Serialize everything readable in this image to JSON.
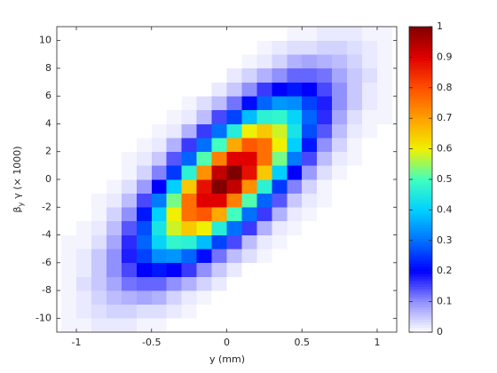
{
  "chart_data": {
    "type": "heatmap",
    "xlabel": "y (mm)",
    "ylabel": {
      "symbol": "β",
      "subscript": "y",
      "rest": "γ (× 1000)"
    },
    "xlim": [
      -1.13,
      1.13
    ],
    "ylim": [
      -11,
      11
    ],
    "xticks": [
      -1,
      -0.5,
      0,
      0.5,
      1
    ],
    "yticks": [
      -10,
      -8,
      -6,
      -4,
      -2,
      0,
      2,
      4,
      6,
      8,
      10
    ],
    "clim": [
      0,
      1
    ],
    "cticks": [
      0,
      0.1,
      0.2,
      0.3,
      0.4,
      0.5,
      0.6,
      0.7,
      0.8,
      0.9,
      1
    ],
    "colormap": [
      "#ffffff",
      "#9090ff",
      "#0000ff",
      "#0070ff",
      "#00d0ff",
      "#40ffc0",
      "#f0f000",
      "#ffa000",
      "#ff5000",
      "#e00000",
      "#800000"
    ],
    "xbins": [
      -1.1,
      -1.0,
      -0.9,
      -0.8,
      -0.7,
      -0.6,
      -0.5,
      -0.4,
      -0.3,
      -0.2,
      -0.1,
      0,
      0.1,
      0.2,
      0.3,
      0.4,
      0.5,
      0.6,
      0.7,
      0.8,
      0.9,
      1.0,
      1.1
    ],
    "ybins": [
      -11,
      -10,
      -9,
      -8,
      -7,
      -6,
      -5,
      -4,
      -3,
      -2,
      -1,
      0,
      1,
      2,
      3,
      4,
      5,
      6,
      7,
      8,
      9,
      10,
      11
    ],
    "z": [
      [
        0.01,
        0.01,
        0.02,
        0.02,
        0.02,
        0.01,
        0.01,
        0,
        0,
        0,
        0,
        0,
        0,
        0,
        0,
        0,
        0,
        0,
        0,
        0,
        0,
        0
      ],
      [
        0.01,
        0.02,
        0.03,
        0.04,
        0.04,
        0.03,
        0.03,
        0.02,
        0.01,
        0,
        0,
        0,
        0,
        0,
        0,
        0,
        0,
        0,
        0,
        0,
        0,
        0
      ],
      [
        0.01,
        0.02,
        0.04,
        0.06,
        0.07,
        0.08,
        0.07,
        0.04,
        0.02,
        0.01,
        0,
        0,
        0,
        0,
        0,
        0,
        0,
        0,
        0,
        0,
        0,
        0
      ],
      [
        0.01,
        0.03,
        0.05,
        0.08,
        0.12,
        0.13,
        0.13,
        0.1,
        0.07,
        0.04,
        0.02,
        0,
        0,
        0,
        0,
        0,
        0,
        0,
        0,
        0,
        0,
        0
      ],
      [
        0.01,
        0.02,
        0.05,
        0.1,
        0.15,
        0.2,
        0.22,
        0.2,
        0.16,
        0.1,
        0.05,
        0.02,
        0,
        0,
        0,
        0,
        0,
        0,
        0,
        0,
        0,
        0
      ],
      [
        0.01,
        0.02,
        0.05,
        0.1,
        0.18,
        0.26,
        0.33,
        0.34,
        0.29,
        0.21,
        0.12,
        0.06,
        0.03,
        0.01,
        0,
        0,
        0,
        0,
        0,
        0,
        0,
        0
      ],
      [
        0.01,
        0.01,
        0.03,
        0.08,
        0.17,
        0.29,
        0.41,
        0.48,
        0.47,
        0.38,
        0.26,
        0.15,
        0.06,
        0.02,
        0.01,
        0,
        0,
        0,
        0,
        0,
        0,
        0
      ],
      [
        0,
        0.01,
        0.02,
        0.06,
        0.14,
        0.27,
        0.44,
        0.58,
        0.65,
        0.6,
        0.46,
        0.3,
        0.16,
        0.07,
        0.02,
        0.01,
        0,
        0,
        0,
        0,
        0,
        0
      ],
      [
        0,
        0,
        0.01,
        0.04,
        0.1,
        0.22,
        0.4,
        0.6,
        0.76,
        0.79,
        0.69,
        0.5,
        0.3,
        0.16,
        0.07,
        0.02,
        0.01,
        0,
        0,
        0,
        0,
        0
      ],
      [
        0,
        0,
        0.01,
        0.02,
        0.06,
        0.15,
        0.31,
        0.53,
        0.76,
        0.9,
        0.9,
        0.74,
        0.51,
        0.29,
        0.14,
        0.05,
        0.02,
        0.01,
        0,
        0,
        0,
        0
      ],
      [
        0,
        0,
        0,
        0.01,
        0.03,
        0.09,
        0.2,
        0.4,
        0.65,
        0.88,
        1,
        0.93,
        0.72,
        0.47,
        0.25,
        0.11,
        0.04,
        0.01,
        0,
        0,
        0,
        0
      ],
      [
        0,
        0,
        0,
        0,
        0.01,
        0.04,
        0.11,
        0.25,
        0.47,
        0.72,
        0.93,
        1,
        0.88,
        0.65,
        0.4,
        0.2,
        0.09,
        0.03,
        0.01,
        0,
        0,
        0
      ],
      [
        0,
        0,
        0,
        0,
        0.01,
        0.02,
        0.05,
        0.14,
        0.29,
        0.51,
        0.74,
        0.9,
        0.9,
        0.76,
        0.53,
        0.31,
        0.15,
        0.06,
        0.02,
        0.01,
        0,
        0
      ],
      [
        0,
        0,
        0,
        0,
        0,
        0.01,
        0.02,
        0.07,
        0.16,
        0.3,
        0.5,
        0.69,
        0.79,
        0.76,
        0.6,
        0.4,
        0.22,
        0.1,
        0.04,
        0.01,
        0,
        0
      ],
      [
        0,
        0,
        0,
        0,
        0,
        0,
        0.01,
        0.02,
        0.07,
        0.16,
        0.3,
        0.46,
        0.6,
        0.65,
        0.58,
        0.44,
        0.27,
        0.14,
        0.06,
        0.02,
        0.01,
        0
      ],
      [
        0,
        0,
        0,
        0,
        0,
        0,
        0,
        0.01,
        0.02,
        0.06,
        0.15,
        0.26,
        0.38,
        0.47,
        0.48,
        0.41,
        0.29,
        0.17,
        0.08,
        0.03,
        0.01,
        0.01
      ],
      [
        0,
        0,
        0,
        0,
        0,
        0,
        0,
        0,
        0.01,
        0.03,
        0.06,
        0.12,
        0.21,
        0.29,
        0.34,
        0.33,
        0.26,
        0.18,
        0.1,
        0.05,
        0.02,
        0.01
      ],
      [
        0,
        0,
        0,
        0,
        0,
        0,
        0,
        0,
        0,
        0,
        0.02,
        0.05,
        0.1,
        0.16,
        0.2,
        0.22,
        0.2,
        0.15,
        0.1,
        0.05,
        0.02,
        0.01
      ],
      [
        0,
        0,
        0,
        0,
        0,
        0,
        0,
        0,
        0,
        0,
        0,
        0.02,
        0.04,
        0.07,
        0.1,
        0.13,
        0.13,
        0.12,
        0.08,
        0.05,
        0.03,
        0.01
      ],
      [
        0,
        0,
        0,
        0,
        0,
        0,
        0,
        0,
        0,
        0,
        0,
        0,
        0.01,
        0.02,
        0.04,
        0.07,
        0.08,
        0.07,
        0.06,
        0.04,
        0.02,
        0.01
      ],
      [
        0,
        0,
        0,
        0,
        0,
        0,
        0,
        0,
        0,
        0,
        0,
        0,
        0,
        0.01,
        0.02,
        0.03,
        0.03,
        0.04,
        0.04,
        0.03,
        0.02,
        0.01
      ],
      [
        0,
        0,
        0,
        0,
        0,
        0,
        0,
        0,
        0,
        0,
        0,
        0,
        0,
        0,
        0,
        0.01,
        0.01,
        0.02,
        0.02,
        0.02,
        0.01,
        0.01
      ]
    ]
  }
}
